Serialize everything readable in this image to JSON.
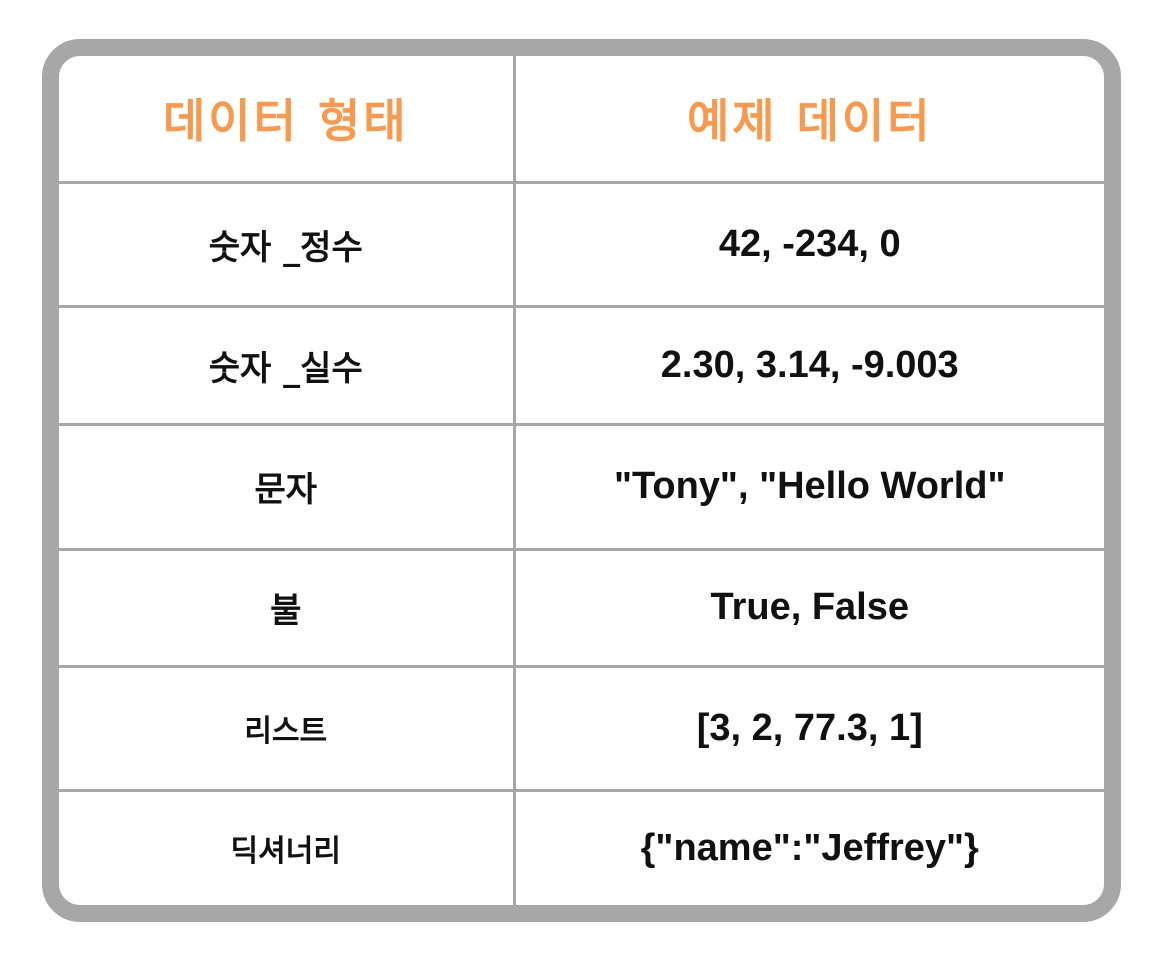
{
  "colors": {
    "header_text": "#f79a4e",
    "border": "#a7a7a7",
    "body_text": "#111111",
    "background": "#ffffff"
  },
  "table": {
    "headers": [
      "데이터 형태",
      "예제 데이터"
    ],
    "rows": [
      {
        "type": "숫자 _정수",
        "example": "42, -234, 0"
      },
      {
        "type": "숫자 _실수",
        "example": "2.30, 3.14, -9.003"
      },
      {
        "type": "문자",
        "example": "\"Tony\", \"Hello World\""
      },
      {
        "type": "불",
        "example": "True, False"
      },
      {
        "type": "리스트",
        "example": "[3, 2, 77.3, 1]"
      },
      {
        "type": "딕셔너리",
        "example": "{\"name\":\"Jeffrey\"}"
      }
    ]
  }
}
